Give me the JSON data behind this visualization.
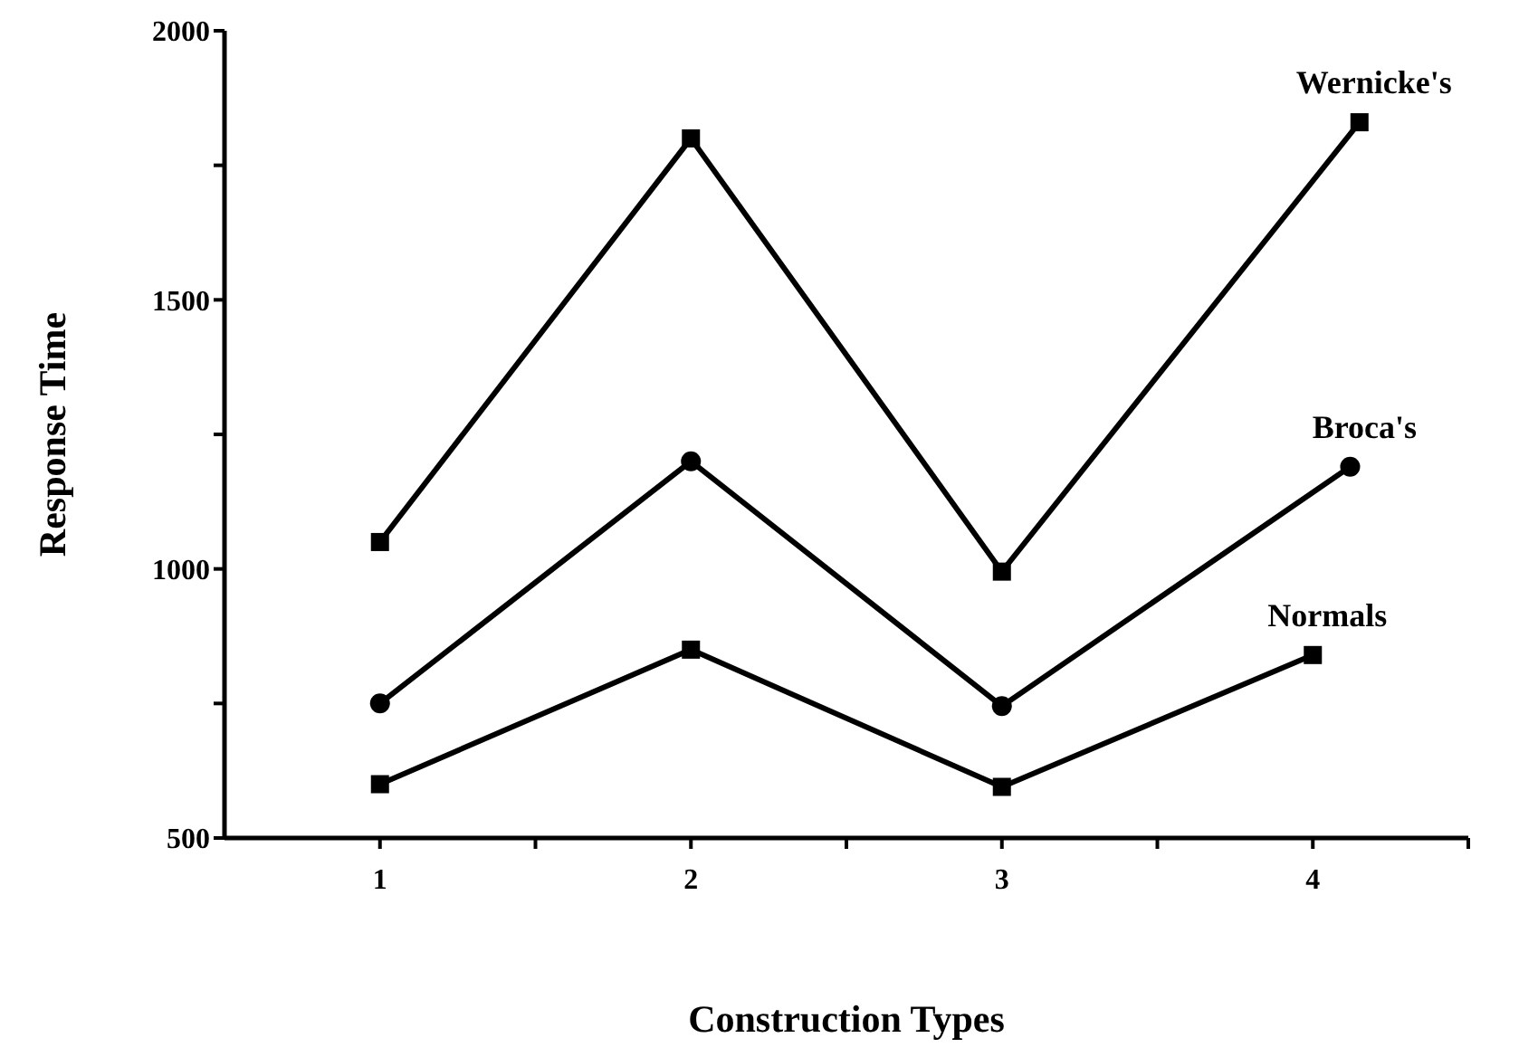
{
  "chart_data": {
    "type": "line",
    "xlabel": "Construction Types",
    "ylabel": "Response Time",
    "xlim": [
      0.5,
      4.5
    ],
    "xticks": [
      1,
      {
        "value": 1.5,
        "label": null
      },
      2,
      {
        "value": 2.5,
        "label": null
      },
      3,
      {
        "value": 3.5,
        "label": null
      },
      4
    ],
    "ylim": [
      500,
      2000
    ],
    "yticks": [
      500,
      {
        "value": 750,
        "label": null
      },
      1000,
      {
        "value": 1250,
        "label": null
      },
      1500,
      {
        "value": 1750,
        "label": null
      },
      2000
    ],
    "line_style": "solid",
    "series": [
      {
        "name": "Wernicke's",
        "color": "#000000",
        "marker": "square",
        "x": [
          1,
          2,
          3,
          4.15
        ],
        "values": [
          1050,
          1800,
          995,
          1830
        ]
      },
      {
        "name": "Broca's",
        "color": "#000000",
        "marker": "circle",
        "x": [
          1,
          2,
          3,
          4.12
        ],
        "values": [
          750,
          1200,
          745,
          1190
        ]
      },
      {
        "name": "Normals",
        "color": "#000000",
        "marker": "square",
        "x": [
          1,
          2,
          3,
          4
        ],
        "values": [
          600,
          850,
          595,
          840
        ]
      }
    ]
  }
}
